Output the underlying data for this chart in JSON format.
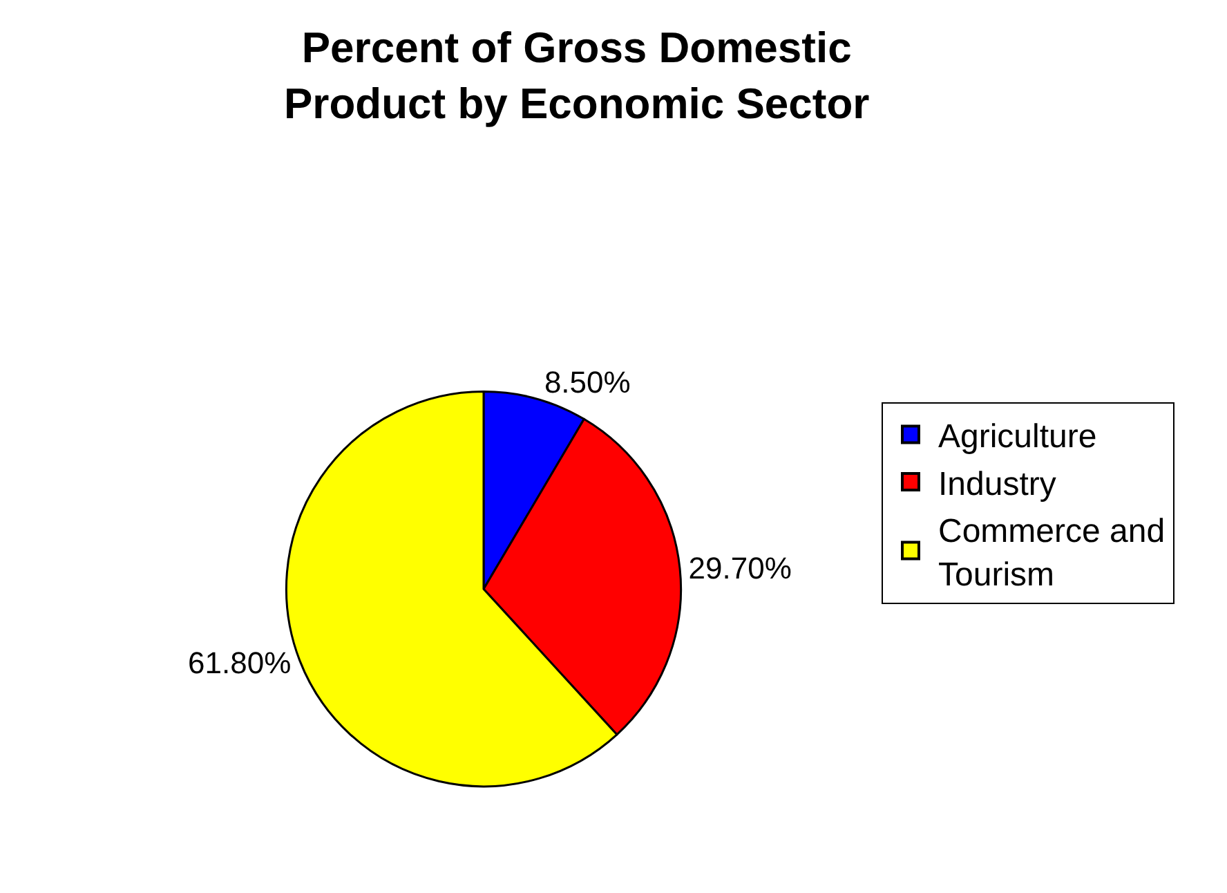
{
  "chart_data": {
    "type": "pie",
    "title": "Percent of Gross Domestic Product by Economic Sector",
    "categories": [
      "Agriculture",
      "Industry",
      "Commerce and Tourism"
    ],
    "values": [
      8.5,
      29.7,
      61.8
    ],
    "value_labels": [
      "8.50%",
      "29.70%",
      "61.80%"
    ],
    "colors": [
      "#0000ff",
      "#ff0000",
      "#ffff00"
    ],
    "legend": "right"
  }
}
